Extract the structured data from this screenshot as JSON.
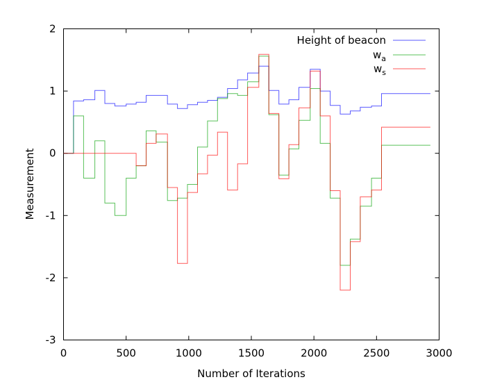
{
  "chart_data": {
    "type": "line",
    "step": true,
    "title": "",
    "xlabel": "Number of Iterations",
    "ylabel": "Measurement",
    "xlim": [
      0,
      3000
    ],
    "ylim": [
      -3,
      2
    ],
    "xticks": [
      0,
      500,
      1000,
      1500,
      2000,
      2500,
      3000
    ],
    "yticks": [
      -3,
      -2,
      -1,
      0,
      1,
      2
    ],
    "grid": false,
    "legend": "top-right",
    "series": [
      {
        "name": "Height of beacon",
        "legend_label": "Height of beacon",
        "color": "#0000ff",
        "x": [
          0,
          80,
          160,
          250,
          330,
          410,
          500,
          580,
          660,
          740,
          830,
          910,
          990,
          1070,
          1150,
          1230,
          1310,
          1390,
          1470,
          1560,
          1640,
          1720,
          1800,
          1880,
          1970,
          2050,
          2130,
          2210,
          2290,
          2370,
          2460,
          2540,
          2930
        ],
        "y": [
          0,
          0.84,
          0.86,
          1.01,
          0.8,
          0.76,
          0.79,
          0.82,
          0.93,
          0.93,
          0.79,
          0.72,
          0.78,
          0.82,
          0.85,
          0.9,
          1.04,
          1.18,
          1.29,
          1.4,
          1.01,
          0.79,
          0.86,
          1.06,
          1.35,
          1.0,
          0.77,
          0.63,
          0.68,
          0.74,
          0.76,
          0.96,
          0.96
        ]
      },
      {
        "name": "w_a",
        "legend_label": "w",
        "legend_sub": "a",
        "color": "#00a000",
        "x": [
          0,
          80,
          160,
          250,
          330,
          410,
          500,
          580,
          660,
          740,
          830,
          910,
          990,
          1070,
          1150,
          1230,
          1310,
          1390,
          1470,
          1560,
          1640,
          1720,
          1800,
          1880,
          1970,
          2050,
          2130,
          2210,
          2290,
          2370,
          2460,
          2540,
          2930
        ],
        "y": [
          0,
          0.6,
          -0.4,
          0.2,
          -0.8,
          -1.0,
          -0.4,
          -0.2,
          0.36,
          0.18,
          -0.76,
          -0.72,
          -0.5,
          0.1,
          0.52,
          0.88,
          0.96,
          0.93,
          1.15,
          1.56,
          0.62,
          -0.35,
          0.07,
          0.53,
          1.04,
          0.16,
          -0.72,
          -1.8,
          -1.38,
          -0.85,
          -0.4,
          0.13,
          0.13
        ]
      },
      {
        "name": "w_s",
        "legend_label": "w",
        "legend_sub": "s",
        "color": "#ff0000",
        "x": [
          0,
          80,
          160,
          250,
          330,
          410,
          500,
          580,
          660,
          740,
          830,
          910,
          990,
          1070,
          1150,
          1230,
          1310,
          1390,
          1470,
          1560,
          1640,
          1720,
          1800,
          1880,
          1970,
          2050,
          2130,
          2210,
          2290,
          2370,
          2460,
          2540,
          2930
        ],
        "y": [
          0,
          0,
          0,
          0,
          0,
          0,
          0,
          -0.2,
          0.16,
          0.31,
          -0.55,
          -1.77,
          -0.63,
          -0.33,
          -0.03,
          0.34,
          -0.59,
          -0.17,
          1.06,
          1.59,
          0.64,
          -0.41,
          0.14,
          0.73,
          1.32,
          0.6,
          -0.6,
          -2.2,
          -1.42,
          -0.7,
          -0.59,
          0.42,
          0.42
        ]
      }
    ]
  }
}
